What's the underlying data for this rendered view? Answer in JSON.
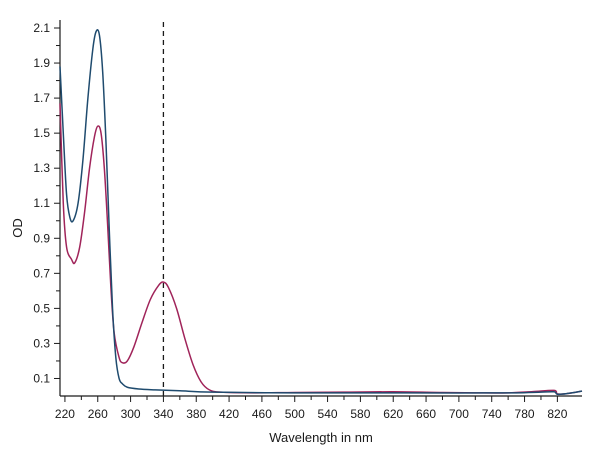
{
  "chart_data": {
    "type": "line",
    "title": "",
    "xlabel": "Wavelength in nm",
    "ylabel": "OD",
    "xlim": [
      214,
      850
    ],
    "ylim": [
      0,
      2.1
    ],
    "x_ticks": [
      220,
      260,
      300,
      340,
      380,
      420,
      460,
      500,
      540,
      580,
      620,
      660,
      700,
      740,
      780,
      820
    ],
    "y_ticks": [
      0.1,
      0.3,
      0.5,
      0.7,
      0.9,
      1.1,
      1.3,
      1.5,
      1.7,
      1.9,
      2.1
    ],
    "grid": false,
    "legend": "none",
    "reference_line": {
      "x": 340,
      "style": "dashed",
      "color": "#1a1a1a"
    },
    "series": [
      {
        "color": "#1f4b6e",
        "points": [
          [
            214,
            1.88
          ],
          [
            218,
            1.5
          ],
          [
            222,
            1.15
          ],
          [
            226,
            1.02
          ],
          [
            230,
            1.0
          ],
          [
            236,
            1.1
          ],
          [
            242,
            1.35
          ],
          [
            248,
            1.7
          ],
          [
            254,
            1.98
          ],
          [
            258,
            2.08
          ],
          [
            262,
            2.06
          ],
          [
            266,
            1.85
          ],
          [
            270,
            1.45
          ],
          [
            274,
            0.95
          ],
          [
            278,
            0.5
          ],
          [
            282,
            0.22
          ],
          [
            286,
            0.1
          ],
          [
            290,
            0.07
          ],
          [
            296,
            0.05
          ],
          [
            310,
            0.04
          ],
          [
            330,
            0.035
          ],
          [
            360,
            0.03
          ],
          [
            400,
            0.022
          ],
          [
            500,
            0.018
          ],
          [
            600,
            0.018
          ],
          [
            700,
            0.017
          ],
          [
            740,
            0.018
          ],
          [
            770,
            0.018
          ],
          [
            800,
            0.022
          ],
          [
            816,
            0.024
          ],
          [
            820,
            0.01
          ],
          [
            832,
            0.014
          ],
          [
            850,
            0.028
          ]
        ]
      },
      {
        "color": "#a0245a",
        "points": [
          [
            214,
            1.67
          ],
          [
            218,
            1.1
          ],
          [
            222,
            0.85
          ],
          [
            228,
            0.78
          ],
          [
            232,
            0.76
          ],
          [
            238,
            0.85
          ],
          [
            244,
            1.05
          ],
          [
            250,
            1.3
          ],
          [
            256,
            1.48
          ],
          [
            260,
            1.54
          ],
          [
            264,
            1.5
          ],
          [
            268,
            1.3
          ],
          [
            272,
            0.98
          ],
          [
            276,
            0.62
          ],
          [
            280,
            0.36
          ],
          [
            286,
            0.22
          ],
          [
            290,
            0.19
          ],
          [
            296,
            0.2
          ],
          [
            304,
            0.28
          ],
          [
            314,
            0.42
          ],
          [
            324,
            0.55
          ],
          [
            334,
            0.63
          ],
          [
            340,
            0.65
          ],
          [
            346,
            0.62
          ],
          [
            356,
            0.5
          ],
          [
            366,
            0.33
          ],
          [
            376,
            0.18
          ],
          [
            386,
            0.08
          ],
          [
            396,
            0.035
          ],
          [
            410,
            0.022
          ],
          [
            450,
            0.018
          ],
          [
            500,
            0.02
          ],
          [
            560,
            0.022
          ],
          [
            620,
            0.024
          ],
          [
            680,
            0.02
          ],
          [
            720,
            0.018
          ],
          [
            760,
            0.018
          ],
          [
            790,
            0.025
          ],
          [
            816,
            0.032
          ],
          [
            820,
            0.012
          ],
          [
            832,
            0.014
          ],
          [
            850,
            0.028
          ]
        ]
      }
    ]
  }
}
